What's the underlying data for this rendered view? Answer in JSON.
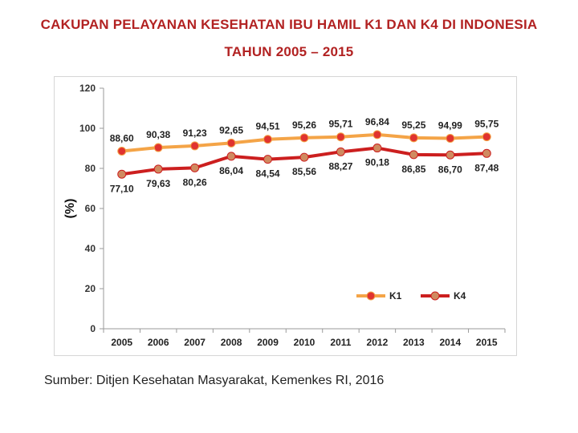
{
  "header": {
    "title_line1": "CAKUPAN PELAYANAN KESEHATAN IBU HAMIL K1 DAN K4 DI INDONESIA",
    "title_line2": "TAHUN 2005 – 2015"
  },
  "footer": {
    "source": "Sumber: Ditjen Kesehatan Masyarakat, Kemenkes RI, 2016"
  },
  "chart_data": {
    "type": "line",
    "title": "CAKUPAN PELAYANAN KESEHATAN IBU HAMIL K1 DAN K4 DI INDONESIA TAHUN 2005 – 2015",
    "xlabel": "",
    "ylabel": "(%)",
    "categories": [
      "2005",
      "2006",
      "2007",
      "2008",
      "2009",
      "2010",
      "2011",
      "2012",
      "2013",
      "2014",
      "2015"
    ],
    "ylim": [
      0,
      120
    ],
    "yticks": [
      0,
      20,
      40,
      60,
      80,
      100,
      120
    ],
    "grid": false,
    "legend_position": "bottom-right",
    "series": [
      {
        "name": "K1",
        "line_color": "#f4a447",
        "marker_color": "#e0332f",
        "values": [
          88.6,
          90.38,
          91.23,
          92.65,
          94.51,
          95.26,
          95.71,
          96.84,
          95.25,
          94.99,
          95.75
        ],
        "labels": [
          "88,60",
          "90,38",
          "91,23",
          "92,65",
          "94,51",
          "95,26",
          "95,71",
          "96,84",
          "95,25",
          "94,99",
          "95,75"
        ]
      },
      {
        "name": "K4",
        "line_color": "#cc1f1f",
        "marker_color": "#d08a60",
        "values": [
          77.1,
          79.63,
          80.26,
          86.04,
          84.54,
          85.56,
          88.27,
          90.18,
          86.85,
          86.7,
          87.48
        ],
        "labels": [
          "77,10",
          "79,63",
          "80,26",
          "86,04",
          "84,54",
          "85,56",
          "88,27",
          "90,18",
          "86,85",
          "86,70",
          "87,48"
        ]
      }
    ]
  }
}
